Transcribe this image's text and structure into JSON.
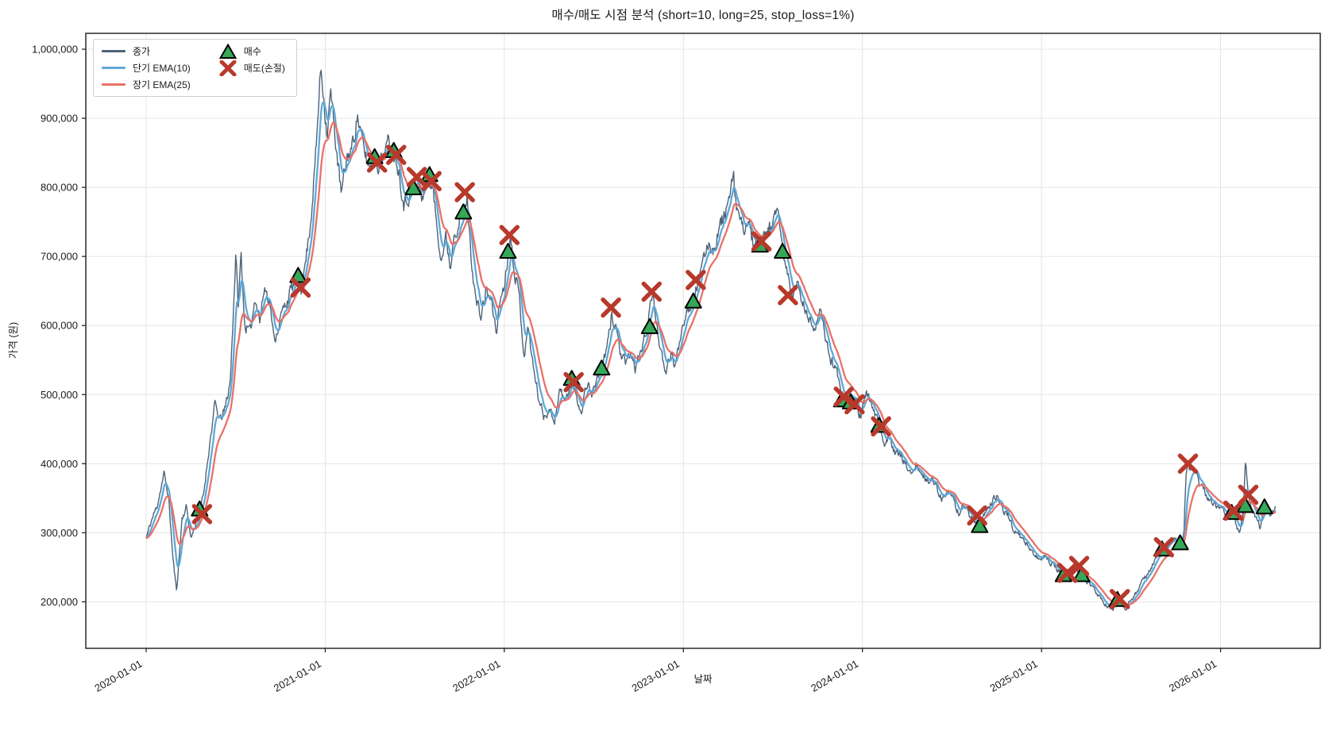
{
  "title": "매수/매도 시점 분석 (short=10, long=25, stop_loss=1%)",
  "chart_data": {
    "type": "line",
    "title": "매수/매도 시점 분석 (short=10, long=25, stop_loss=1%)",
    "xlabel": "날짜",
    "ylabel": "가격 (원)",
    "grid": true,
    "legend_position": "upper-left",
    "x_tick_labels": [
      "2020-01-01",
      "2021-01-01",
      "2022-01-01",
      "2023-01-01",
      "2024-01-01",
      "2025-01-01",
      "2026-01-01"
    ],
    "y_tick_values": [
      200000,
      300000,
      400000,
      500000,
      600000,
      700000,
      800000,
      900000,
      1000000
    ],
    "ylim": [
      132000,
      1023000
    ],
    "xlim_years_from_2020": [
      -0.337,
      6.554
    ],
    "colors": {
      "close": "#4d6378",
      "ema_short": "#5fa8d8",
      "ema_long": "#e97167",
      "buy_fill": "#35a858",
      "buy_edge": "#000000",
      "sell": "#b8392b",
      "grid": "#e4e4e4",
      "spine": "#1a1a1a",
      "tick_text": "#1a1a1a"
    },
    "series": [
      {
        "name": "종가",
        "role": "close",
        "width": 1.4
      },
      {
        "name": "단기 EMA(10)",
        "role": "ema_short",
        "span": 10,
        "width": 2.3
      },
      {
        "name": "장기 EMA(25)",
        "role": "ema_long",
        "span": 25,
        "width": 2.3
      }
    ],
    "buy_marker": {
      "label": "매수",
      "shape": "triangle-up"
    },
    "sell_marker": {
      "label": "매도(손절)",
      "shape": "x"
    },
    "price_unit": 1000,
    "close_anchors": {
      "t_years_from_2020": [
        0.0,
        0.03,
        0.06,
        0.085,
        0.1,
        0.125,
        0.15,
        0.17,
        0.2,
        0.225,
        0.25,
        0.275,
        0.301,
        0.32,
        0.35,
        0.385,
        0.41,
        0.44,
        0.47,
        0.5,
        0.515,
        0.53,
        0.55,
        0.58,
        0.61,
        0.635,
        0.66,
        0.69,
        0.715,
        0.75,
        0.78,
        0.81,
        0.851,
        0.865,
        0.89,
        0.92,
        0.95,
        0.975,
        0.99,
        1.01,
        1.03,
        1.06,
        1.09,
        1.12,
        1.15,
        1.18,
        1.21,
        1.245,
        1.277,
        1.3,
        1.33,
        1.36,
        1.384,
        1.41,
        1.44,
        1.47,
        1.494,
        1.512,
        1.54,
        1.579,
        1.6,
        1.625,
        1.65,
        1.675,
        1.7,
        1.72,
        1.75,
        1.778,
        1.792,
        1.81,
        1.84,
        1.87,
        1.9,
        1.93,
        1.955,
        1.98,
        2.0,
        2.022,
        2.035,
        2.06,
        2.085,
        2.11,
        2.135,
        2.16,
        2.19,
        2.22,
        2.25,
        2.28,
        2.31,
        2.34,
        2.377,
        2.4,
        2.43,
        2.46,
        2.49,
        2.52,
        2.546,
        2.575,
        2.6,
        2.625,
        2.65,
        2.68,
        2.705,
        2.73,
        2.76,
        2.79,
        2.825,
        2.85,
        2.875,
        2.9,
        2.93,
        2.955,
        2.98,
        3.01,
        3.04,
        3.08,
        3.11,
        3.14,
        3.17,
        3.2,
        3.23,
        3.26,
        3.28,
        3.3,
        3.33,
        3.36,
        3.39,
        3.42,
        3.44,
        3.47,
        3.5,
        3.53,
        3.556,
        3.58,
        3.61,
        3.64,
        3.67,
        3.7,
        3.73,
        3.76,
        3.79,
        3.82,
        3.85,
        3.875,
        3.9,
        3.92,
        3.94,
        3.965,
        3.99,
        4.02,
        4.06,
        4.097,
        4.125,
        4.15,
        4.18,
        4.21,
        4.24,
        4.27,
        4.3,
        4.33,
        4.36,
        4.39,
        4.42,
        4.45,
        4.48,
        4.51,
        4.54,
        4.57,
        4.6,
        4.63,
        4.655,
        4.69,
        4.72,
        4.75,
        4.78,
        4.81,
        4.84,
        4.87,
        4.9,
        4.93,
        4.96,
        4.99,
        5.02,
        5.05,
        5.08,
        5.105,
        5.13,
        5.16,
        5.19,
        5.22,
        5.25,
        5.28,
        5.31,
        5.34,
        5.37,
        5.4,
        5.428,
        5.45,
        5.47,
        5.5,
        5.53,
        5.56,
        5.59,
        5.62,
        5.65,
        5.68,
        5.71,
        5.74,
        5.76,
        5.78,
        5.795,
        5.808,
        5.82,
        5.84,
        5.86,
        5.88,
        5.9,
        5.92,
        5.94,
        5.97,
        6.0,
        6.03,
        6.066,
        6.085,
        6.105,
        6.125,
        6.14,
        6.155,
        6.18,
        6.2,
        6.22,
        6.24,
        6.26,
        6.285,
        6.31
      ],
      "price_k": [
        292,
        318,
        338,
        368,
        385,
        352,
        262,
        215,
        320,
        338,
        292,
        312,
        334,
        355,
        420,
        487,
        462,
        478,
        520,
        700,
        628,
        705,
        602,
        588,
        645,
        606,
        655,
        638,
        575,
        612,
        632,
        652,
        672,
        652,
        692,
        755,
        858,
        975,
        938,
        878,
        938,
        862,
        788,
        842,
        858,
        905,
        860,
        828,
        844,
        834,
        852,
        868,
        853,
        828,
        776,
        790,
        799,
        812,
        786,
        818,
        798,
        742,
        698,
        728,
        684,
        740,
        748,
        764,
        788,
        715,
        638,
        612,
        652,
        632,
        592,
        642,
        658,
        707,
        728,
        678,
        638,
        558,
        598,
        542,
        498,
        468,
        480,
        462,
        508,
        488,
        523,
        498,
        476,
        518,
        502,
        525,
        538,
        568,
        615,
        598,
        558,
        542,
        560,
        538,
        558,
        588,
        645,
        608,
        558,
        528,
        562,
        538,
        582,
        618,
        630,
        662,
        688,
        722,
        708,
        742,
        760,
        788,
        810,
        768,
        738,
        752,
        718,
        710,
        722,
        736,
        752,
        758,
        707,
        676,
        642,
        660,
        628,
        608,
        598,
        620,
        588,
        552,
        538,
        518,
        492,
        508,
        494,
        486,
        468,
        502,
        478,
        452,
        428,
        444,
        418,
        412,
        398,
        388,
        398,
        383,
        373,
        379,
        363,
        348,
        358,
        343,
        328,
        343,
        323,
        316,
        308,
        330,
        344,
        352,
        334,
        328,
        308,
        298,
        288,
        280,
        268,
        260,
        268,
        256,
        250,
        243,
        239,
        244,
        252,
        239,
        230,
        222,
        212,
        202,
        193,
        189,
        203,
        194,
        188,
        204,
        214,
        227,
        239,
        254,
        267,
        276,
        284,
        294,
        287,
        284,
        300,
        390,
        398,
        388,
        396,
        371,
        364,
        354,
        347,
        341,
        337,
        329,
        329,
        314,
        300,
        328,
        410,
        354,
        329,
        317,
        309,
        330,
        332,
        326,
        338
      ]
    },
    "noise": {
      "seed": 11,
      "amplitude": 0.013,
      "persistence": 0.5,
      "steps_per_year": 260
    },
    "buy_signals": [
      {
        "date": "2020-04-19",
        "price_k": 334
      },
      {
        "date": "2020-11-06",
        "price_k": 672
      },
      {
        "date": "2021-04-11",
        "price_k": 844
      },
      {
        "date": "2021-05-20",
        "price_k": 853
      },
      {
        "date": "2021-06-29",
        "price_k": 799
      },
      {
        "date": "2021-08-01",
        "price_k": 818
      },
      {
        "date": "2021-10-09",
        "price_k": 764
      },
      {
        "date": "2022-01-08",
        "price_k": 707
      },
      {
        "date": "2022-05-18",
        "price_k": 523
      },
      {
        "date": "2022-07-18",
        "price_k": 538
      },
      {
        "date": "2022-10-24",
        "price_k": 598
      },
      {
        "date": "2023-01-21",
        "price_k": 635
      },
      {
        "date": "2023-06-06",
        "price_k": 716
      },
      {
        "date": "2023-07-22",
        "price_k": 707
      },
      {
        "date": "2023-11-20",
        "price_k": 492
      },
      {
        "date": "2023-12-08",
        "price_k": 489
      },
      {
        "date": "2024-02-04",
        "price_k": 455
      },
      {
        "date": "2024-08-27",
        "price_k": 310
      },
      {
        "date": "2025-02-14",
        "price_k": 239
      },
      {
        "date": "2025-03-23",
        "price_k": 239
      },
      {
        "date": "2025-06-04",
        "price_k": 203
      },
      {
        "date": "2025-09-03",
        "price_k": 276
      },
      {
        "date": "2025-10-10",
        "price_k": 285
      },
      {
        "date": "2026-01-23",
        "price_k": 329
      },
      {
        "date": "2026-02-20",
        "price_k": 339
      },
      {
        "date": "2026-03-31",
        "price_k": 337
      }
    ],
    "sell_signals": [
      {
        "date": "2020-04-24",
        "price_k": 327
      },
      {
        "date": "2020-11-11",
        "price_k": 655
      },
      {
        "date": "2021-04-16",
        "price_k": 836
      },
      {
        "date": "2021-05-25",
        "price_k": 847
      },
      {
        "date": "2021-07-06",
        "price_k": 815
      },
      {
        "date": "2021-08-05",
        "price_k": 809
      },
      {
        "date": "2021-10-12",
        "price_k": 793
      },
      {
        "date": "2022-01-11",
        "price_k": 731
      },
      {
        "date": "2022-05-22",
        "price_k": 518
      },
      {
        "date": "2022-08-06",
        "price_k": 626
      },
      {
        "date": "2022-10-28",
        "price_k": 649
      },
      {
        "date": "2023-01-26",
        "price_k": 666
      },
      {
        "date": "2023-06-09",
        "price_k": 722
      },
      {
        "date": "2023-08-02",
        "price_k": 644
      },
      {
        "date": "2023-11-24",
        "price_k": 497
      },
      {
        "date": "2023-12-16",
        "price_k": 486
      },
      {
        "date": "2024-02-08",
        "price_k": 454
      },
      {
        "date": "2024-08-22",
        "price_k": 325
      },
      {
        "date": "2025-02-22",
        "price_k": 242
      },
      {
        "date": "2025-03-18",
        "price_k": 252
      },
      {
        "date": "2025-06-09",
        "price_k": 204
      },
      {
        "date": "2025-09-07",
        "price_k": 279
      },
      {
        "date": "2025-10-26",
        "price_k": 400
      },
      {
        "date": "2026-01-27",
        "price_k": 332
      },
      {
        "date": "2026-02-26",
        "price_k": 355
      }
    ]
  }
}
